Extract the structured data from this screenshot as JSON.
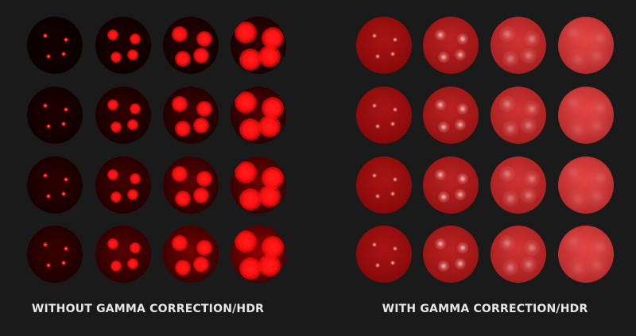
{
  "panels": [
    {
      "caption": "WITHOUT GAMMA CORRECTION/HDR",
      "gamma_corrected": false
    },
    {
      "caption": "WITH GAMMA CORRECTION/HDR",
      "gamma_corrected": true
    }
  ],
  "colors": {
    "background": "#1a1a1a",
    "sphere_base": "#c00000",
    "caption": "#e6e6e6"
  }
}
